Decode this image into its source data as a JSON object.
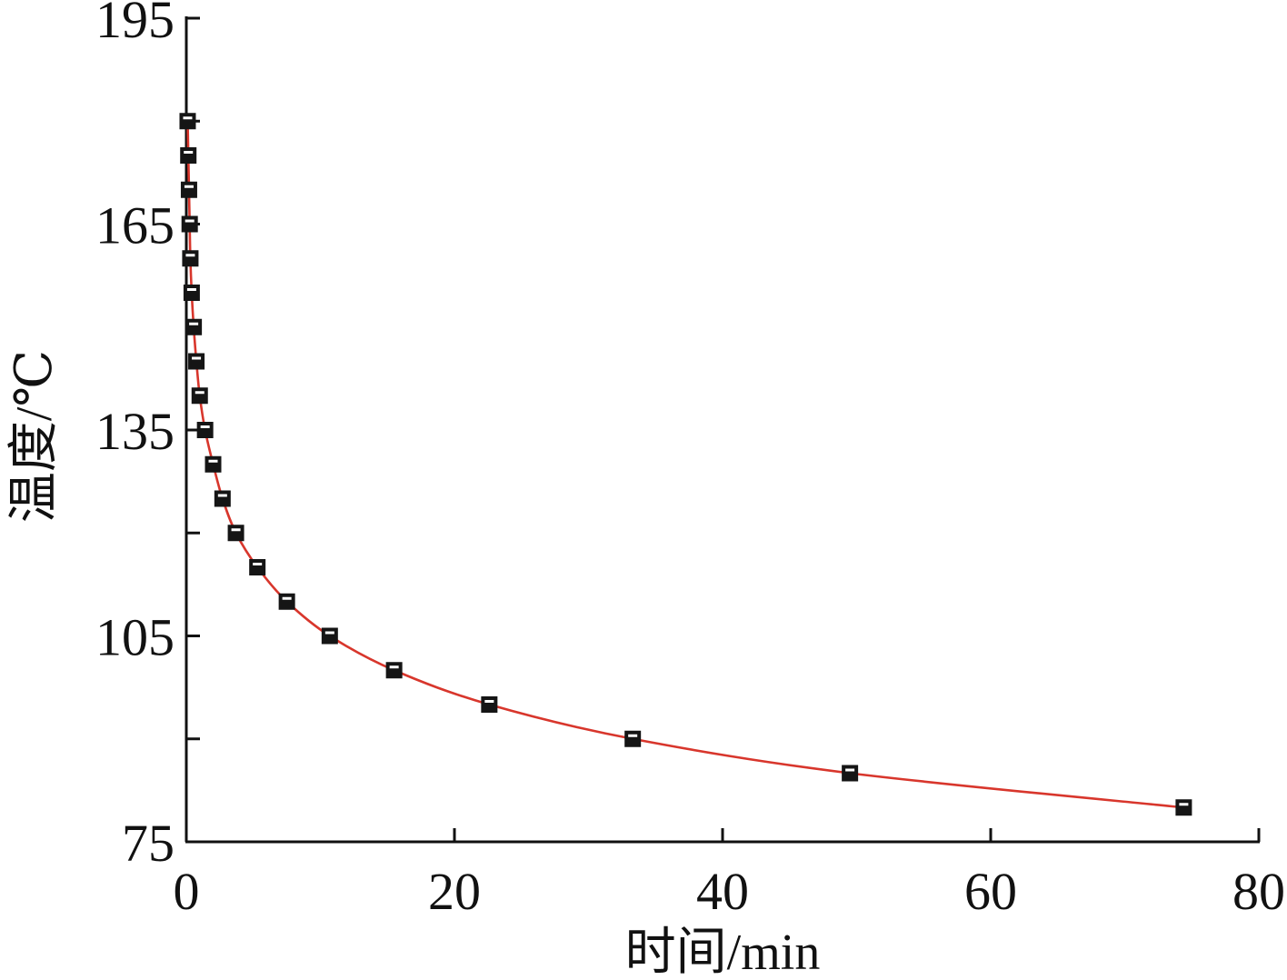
{
  "chart_data": {
    "type": "scatter",
    "title": "",
    "xlabel": "时间/min",
    "ylabel": "温度/℃",
    "xlim": [
      0,
      80
    ],
    "ylim": [
      75,
      195
    ],
    "x_ticks": [
      0,
      20,
      40,
      60,
      80
    ],
    "y_ticks": [
      75,
      105,
      135,
      165,
      195
    ],
    "y_minor_ticks": [
      90,
      120,
      150,
      180
    ],
    "grid": false,
    "legend": "none",
    "series": [
      {
        "x": [
          0.1,
          0.15,
          0.2,
          0.25,
          0.3,
          0.4,
          0.55,
          0.75,
          1.0,
          1.4,
          2.0,
          2.7,
          3.7,
          5.3,
          7.5,
          10.7,
          15.5,
          22.6,
          33.3,
          49.5,
          74.4
        ],
        "y": [
          180,
          175,
          170,
          165,
          160,
          155,
          150,
          145,
          140,
          135,
          130,
          125,
          120,
          115,
          110,
          105,
          100,
          95,
          90,
          85,
          80
        ],
        "marker": "square",
        "marker_color": "#151515",
        "line": "smooth",
        "line_color": "#d8362c"
      }
    ]
  }
}
